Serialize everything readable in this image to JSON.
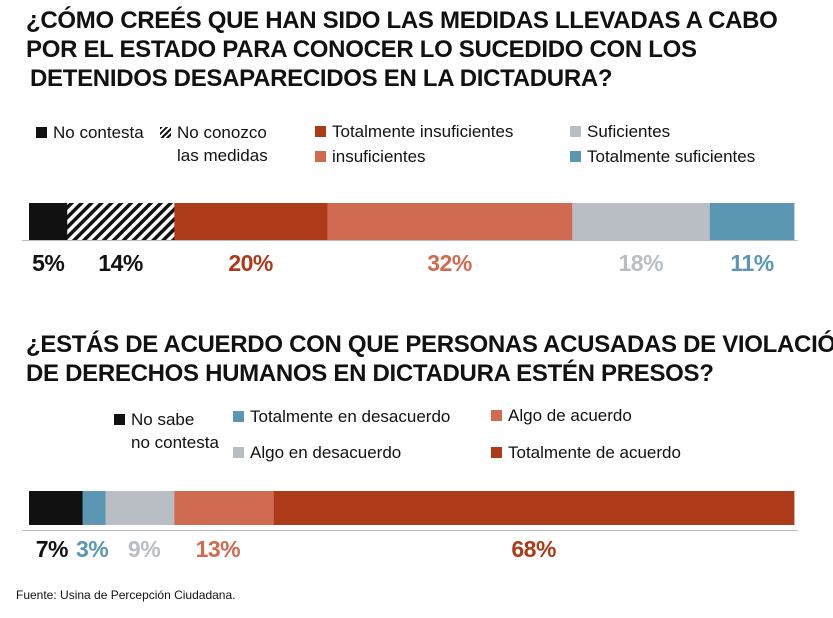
{
  "chart_data": [
    {
      "type": "bar",
      "orientation": "horizontal-stacked",
      "title_lines": [
        "¿CÓMO CREÉS QUE HAN SIDO LAS MEDIDAS LLEVADAS A CABO",
        "POR EL ESTADO PARA CONOCER LO SUCEDIDO CON LOS",
        "DETENIDOS DESAPARECIDOS EN LA DICTADURA?"
      ],
      "unit": "%",
      "xlim": [
        0,
        100
      ],
      "segments": [
        {
          "name": "No contesta",
          "value": 5,
          "label": "5%",
          "color": "#111111",
          "label_color": "#111111",
          "hatched": false
        },
        {
          "name": "No conozco\nlas medidas",
          "value": 14,
          "label": "14%",
          "color": "#111111",
          "label_color": "#111111",
          "hatched": true
        },
        {
          "name": "Totalmente insuficientes",
          "value": 20,
          "label": "20%",
          "color": "#ad3b19",
          "label_color": "#ad3b19",
          "hatched": false
        },
        {
          "name": "insuficientes",
          "value": 32,
          "label": "32%",
          "color": "#d06a50",
          "label_color": "#d06a50",
          "hatched": false
        },
        {
          "name": "Suficientes",
          "value": 18,
          "label": "18%",
          "color": "#b9bec4",
          "label_color": "#b9bec4",
          "hatched": false
        },
        {
          "name": "Totalmente suficientes",
          "value": 11,
          "label": "11%",
          "color": "#5b96b2",
          "label_color": "#5b96b2",
          "hatched": false
        }
      ]
    },
    {
      "type": "bar",
      "orientation": "horizontal-stacked",
      "title_lines": [
        "¿ESTÁS DE ACUERDO CON QUE PERSONAS ACUSADAS DE VIOLACIÓN",
        "DE DERECHOS HUMANOS EN DICTADURA ESTÉN PRESOS?"
      ],
      "unit": "%",
      "xlim": [
        0,
        100
      ],
      "segments": [
        {
          "name": "No sabe\nno contesta",
          "value": 7,
          "label": "7%",
          "color": "#111111",
          "label_color": "#111111",
          "hatched": false
        },
        {
          "name": "Totalmente en desacuerdo",
          "value": 3,
          "label": "3%",
          "color": "#5b96b2",
          "label_color": "#5b96b2",
          "hatched": false
        },
        {
          "name": "Algo en desacuerdo",
          "value": 9,
          "label": "9%",
          "color": "#b9bec4",
          "label_color": "#b9bec4",
          "hatched": false
        },
        {
          "name": "Algo de acuerdo",
          "value": 13,
          "label": "13%",
          "color": "#d06a50",
          "label_color": "#d06a50",
          "hatched": false
        },
        {
          "name": "Totalmente de acuerdo",
          "value": 68,
          "label": "68%",
          "color": "#ad3b19",
          "label_color": "#ad3b19",
          "hatched": false
        }
      ]
    }
  ],
  "source": "Fuente: Usina de Percepción Ciudadana."
}
